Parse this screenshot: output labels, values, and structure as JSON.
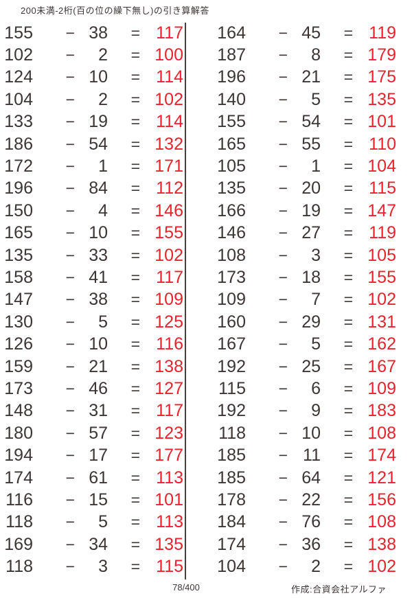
{
  "title": "200未満-2桁(百の位の繰下無し)の引き算解答",
  "page_indicator": "78/400",
  "credit": "作成:合資会社アルファ",
  "operator": "−",
  "equals": "=",
  "colors": {
    "text": "#3c3534",
    "answer": "#e8232d",
    "divider": "#45403c",
    "background": "#ffffff"
  },
  "columns": [
    {
      "problems": [
        {
          "minuend": 155,
          "subtrahend": 38,
          "answer": 117
        },
        {
          "minuend": 102,
          "subtrahend": 2,
          "answer": 100
        },
        {
          "minuend": 124,
          "subtrahend": 10,
          "answer": 114
        },
        {
          "minuend": 104,
          "subtrahend": 2,
          "answer": 102
        },
        {
          "minuend": 133,
          "subtrahend": 19,
          "answer": 114
        },
        {
          "minuend": 186,
          "subtrahend": 54,
          "answer": 132
        },
        {
          "minuend": 172,
          "subtrahend": 1,
          "answer": 171
        },
        {
          "minuend": 196,
          "subtrahend": 84,
          "answer": 112
        },
        {
          "minuend": 150,
          "subtrahend": 4,
          "answer": 146
        },
        {
          "minuend": 165,
          "subtrahend": 10,
          "answer": 155
        },
        {
          "minuend": 135,
          "subtrahend": 33,
          "answer": 102
        },
        {
          "minuend": 158,
          "subtrahend": 41,
          "answer": 117
        },
        {
          "minuend": 147,
          "subtrahend": 38,
          "answer": 109
        },
        {
          "minuend": 130,
          "subtrahend": 5,
          "answer": 125
        },
        {
          "minuend": 126,
          "subtrahend": 10,
          "answer": 116
        },
        {
          "minuend": 159,
          "subtrahend": 21,
          "answer": 138
        },
        {
          "minuend": 173,
          "subtrahend": 46,
          "answer": 127
        },
        {
          "minuend": 148,
          "subtrahend": 31,
          "answer": 117
        },
        {
          "minuend": 180,
          "subtrahend": 57,
          "answer": 123
        },
        {
          "minuend": 194,
          "subtrahend": 17,
          "answer": 177
        },
        {
          "minuend": 174,
          "subtrahend": 61,
          "answer": 113
        },
        {
          "minuend": 116,
          "subtrahend": 15,
          "answer": 101
        },
        {
          "minuend": 118,
          "subtrahend": 5,
          "answer": 113
        },
        {
          "minuend": 169,
          "subtrahend": 34,
          "answer": 135
        },
        {
          "minuend": 118,
          "subtrahend": 3,
          "answer": 115
        }
      ]
    },
    {
      "problems": [
        {
          "minuend": 164,
          "subtrahend": 45,
          "answer": 119
        },
        {
          "minuend": 187,
          "subtrahend": 8,
          "answer": 179
        },
        {
          "minuend": 196,
          "subtrahend": 21,
          "answer": 175
        },
        {
          "minuend": 140,
          "subtrahend": 5,
          "answer": 135
        },
        {
          "minuend": 155,
          "subtrahend": 54,
          "answer": 101
        },
        {
          "minuend": 165,
          "subtrahend": 55,
          "answer": 110
        },
        {
          "minuend": 105,
          "subtrahend": 1,
          "answer": 104
        },
        {
          "minuend": 135,
          "subtrahend": 20,
          "answer": 115
        },
        {
          "minuend": 166,
          "subtrahend": 19,
          "answer": 147
        },
        {
          "minuend": 146,
          "subtrahend": 27,
          "answer": 119
        },
        {
          "minuend": 108,
          "subtrahend": 3,
          "answer": 105
        },
        {
          "minuend": 173,
          "subtrahend": 18,
          "answer": 155
        },
        {
          "minuend": 109,
          "subtrahend": 7,
          "answer": 102
        },
        {
          "minuend": 160,
          "subtrahend": 29,
          "answer": 131
        },
        {
          "minuend": 167,
          "subtrahend": 5,
          "answer": 162
        },
        {
          "minuend": 192,
          "subtrahend": 25,
          "answer": 167
        },
        {
          "minuend": 115,
          "subtrahend": 6,
          "answer": 109
        },
        {
          "minuend": 192,
          "subtrahend": 9,
          "answer": 183
        },
        {
          "minuend": 118,
          "subtrahend": 10,
          "answer": 108
        },
        {
          "minuend": 185,
          "subtrahend": 11,
          "answer": 174
        },
        {
          "minuend": 185,
          "subtrahend": 64,
          "answer": 121
        },
        {
          "minuend": 178,
          "subtrahend": 22,
          "answer": 156
        },
        {
          "minuend": 184,
          "subtrahend": 76,
          "answer": 108
        },
        {
          "minuend": 174,
          "subtrahend": 36,
          "answer": 138
        },
        {
          "minuend": 104,
          "subtrahend": 2,
          "answer": 102
        }
      ]
    }
  ]
}
